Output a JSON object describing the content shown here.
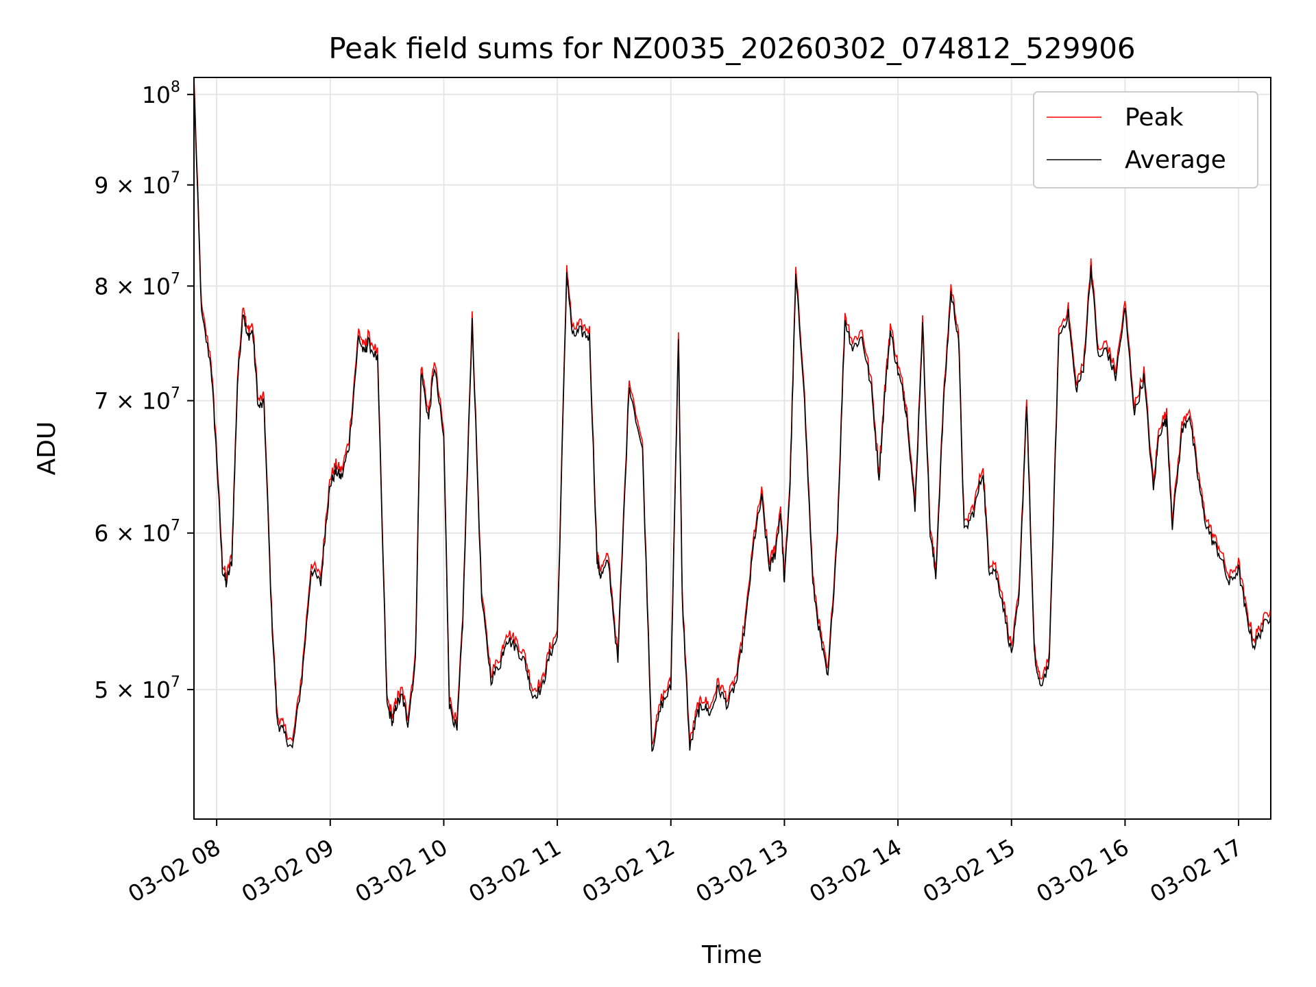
{
  "chart_data": {
    "type": "line",
    "title": "Peak field sums for NZ0035_20260302_074812_529906",
    "xlabel": "Time",
    "ylabel": "ADU",
    "x_axis": "time",
    "x_ticks": [
      "03-02 08",
      "03-02 09",
      "03-02 10",
      "03-02 11",
      "03-02 12",
      "03-02 13",
      "03-02 14",
      "03-02 15",
      "03-02 16",
      "03-02 17"
    ],
    "x_range": [
      "2026-03-02 07:48",
      "2026-03-02 17:17"
    ],
    "y_scale": "log",
    "y_range": [
      43000000,
      102000000
    ],
    "y_ticks": [
      {
        "value": 50000000,
        "coef": "5",
        "base": "10",
        "exp": "7"
      },
      {
        "value": 60000000,
        "coef": "6",
        "base": "10",
        "exp": "7"
      },
      {
        "value": 70000000,
        "coef": "7",
        "base": "10",
        "exp": "7"
      },
      {
        "value": 80000000,
        "coef": "8",
        "base": "10",
        "exp": "7"
      },
      {
        "value": 90000000,
        "coef": "9",
        "base": "10",
        "exp": "7"
      },
      {
        "value": 100000000,
        "coef": "",
        "base": "10",
        "exp": "8"
      }
    ],
    "grid": true,
    "legend_position": "top-right",
    "series": [
      {
        "name": "Peak",
        "color": "#ff0000",
        "x": [
          "07:48",
          "07:52",
          "07:57",
          "08:00",
          "08:03",
          "08:05",
          "08:08",
          "08:11",
          "08:14",
          "08:16",
          "08:19",
          "08:22",
          "08:25",
          "08:29",
          "08:32",
          "08:35",
          "08:40",
          "08:45",
          "08:50",
          "08:55",
          "08:58",
          "09:00",
          "09:03",
          "09:06",
          "09:10",
          "09:15",
          "09:18",
          "09:20",
          "09:25",
          "09:30",
          "09:33",
          "09:35",
          "09:38",
          "09:41",
          "09:45",
          "09:48",
          "09:52",
          "09:55",
          "10:00",
          "10:03",
          "10:07",
          "10:10",
          "10:15",
          "10:20",
          "10:25",
          "10:30",
          "10:33",
          "10:38",
          "10:43",
          "10:47",
          "10:52",
          "10:56",
          "11:00",
          "11:05",
          "11:08",
          "11:12",
          "11:17",
          "11:21",
          "11:23",
          "11:27",
          "11:32",
          "11:38",
          "11:45",
          "11:50",
          "11:55",
          "12:00",
          "12:04",
          "12:06",
          "12:10",
          "12:14",
          "12:17",
          "12:21",
          "12:25",
          "12:30",
          "12:35",
          "12:40",
          "12:44",
          "12:48",
          "12:52",
          "12:55",
          "12:58",
          "13:00",
          "13:03",
          "13:06",
          "13:10",
          "13:15",
          "13:19",
          "13:23",
          "13:28",
          "13:32",
          "13:36",
          "13:41",
          "13:46",
          "13:50",
          "13:53",
          "13:56",
          "14:00",
          "14:03",
          "14:05",
          "14:09",
          "14:13",
          "14:17",
          "14:20",
          "14:24",
          "14:28",
          "14:32",
          "14:35",
          "14:40",
          "14:45",
          "14:48",
          "14:51",
          "14:55",
          "15:00",
          "15:04",
          "15:08",
          "15:12",
          "15:15",
          "15:20",
          "15:25",
          "15:30",
          "15:34",
          "15:38",
          "15:42",
          "15:46",
          "15:50",
          "15:55",
          "16:00",
          "16:05",
          "16:10",
          "16:15",
          "16:18",
          "16:22",
          "16:25",
          "16:30",
          "16:34",
          "16:38",
          "16:42",
          "16:46",
          "16:50",
          "16:55",
          "17:00",
          "17:04",
          "17:08",
          "17:12",
          "17:17"
        ],
        "values": [
          102000000,
          78000000,
          73500000,
          66000000,
          58000000,
          57000000,
          58500000,
          72000000,
          78500000,
          76000000,
          76500000,
          70000000,
          70300000,
          55000000,
          48500000,
          48000000,
          47000000,
          51000000,
          58000000,
          57000000,
          61500000,
          64000000,
          65000000,
          64500000,
          67000000,
          76000000,
          74500000,
          75500000,
          74000000,
          49500000,
          48500000,
          49500000,
          50000000,
          48500000,
          52000000,
          73000000,
          69000000,
          73500000,
          67500000,
          49500000,
          48000000,
          54500000,
          77500000,
          56000000,
          51000000,
          52000000,
          53500000,
          53000000,
          52000000,
          50000000,
          50500000,
          52500000,
          53500000,
          82000000,
          76000000,
          76500000,
          76000000,
          58500000,
          57500000,
          58500000,
          52000000,
          72000000,
          66500000,
          47000000,
          49500000,
          50500000,
          76000000,
          56000000,
          47000000,
          49000000,
          49500000,
          49000000,
          50500000,
          49500000,
          51000000,
          55000000,
          60000000,
          63000000,
          58000000,
          59000000,
          62000000,
          57000000,
          64000000,
          81500000,
          72500000,
          57000000,
          53500000,
          51000000,
          60500000,
          77500000,
          75000000,
          76000000,
          71500000,
          64500000,
          71000000,
          76500000,
          73000000,
          71000000,
          69000000,
          62000000,
          77000000,
          60500000,
          57500000,
          70000000,
          80000000,
          76000000,
          60500000,
          62000000,
          65000000,
          58000000,
          58000000,
          56000000,
          52500000,
          56000000,
          70500000,
          52500000,
          50500000,
          52000000,
          76000000,
          78000000,
          71500000,
          73000000,
          82500000,
          74000000,
          75000000,
          72500000,
          78500000,
          69500000,
          72500000,
          63500000,
          68000000,
          69000000,
          61000000,
          68000000,
          69500000,
          65000000,
          61500000,
          60000000,
          59000000,
          57000000,
          58000000,
          55000000,
          53000000,
          54000000,
          55000000
        ],
        "note_values_partial": false
      },
      {
        "name": "Average",
        "color": "#000000"
      }
    ]
  }
}
